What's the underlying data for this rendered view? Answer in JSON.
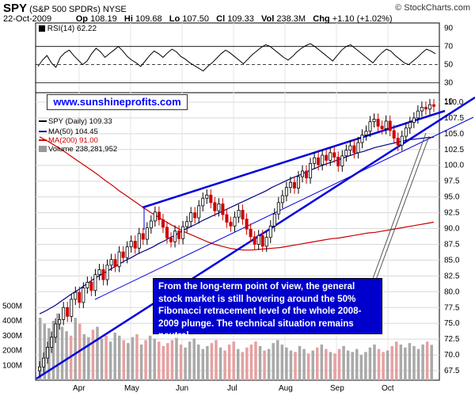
{
  "header": {
    "symbol": "SPY",
    "name": "(S&P 500 SPDRs)",
    "exchange": "NYSE",
    "date": "22-Oct-2009",
    "open_label": "Op",
    "open": "108.19",
    "high_label": "Hi",
    "high": "109.68",
    "low_label": "Lo",
    "low": "107.50",
    "close_label": "Cl",
    "close": "109.33",
    "vol_label": "Vol",
    "vol": "238.3M",
    "chg_label": "Chg",
    "chg": "+1.10 (+1.02%)",
    "credit": "© StockCharts.com"
  },
  "rsi_panel": {
    "label": "RSI(14) 62.22",
    "ticks": [
      "90",
      "70",
      "50",
      "30"
    ]
  },
  "url_box": "www.sunshineprofits.com",
  "legend": {
    "price": "SPY (Daily) 109.33",
    "ma50": "MA(50) 104.45",
    "ma200": "MA(200) 91.00",
    "volume": "Volume 238,281,952"
  },
  "annotation": "From the long-term point of view, the general stock market is still hovering around the 50% Fibonacci retracement level of the whole 2008-2009 plunge. The technical situation remains neutral.",
  "colors": {
    "up": "#000000",
    "down": "#cc0000",
    "ma50": "#00008b",
    "ma200": "#cc0000",
    "trend": "#0000dd",
    "note_bg": "#0000cc"
  },
  "chart_data": {
    "type": "candlestick",
    "price_ticks": [
      "110.0",
      "107.5",
      "105.0",
      "102.5",
      "100.0",
      "97.5",
      "95.0",
      "92.5",
      "90.0",
      "87.5",
      "85.0",
      "82.5",
      "80.0",
      "77.5",
      "75.0",
      "72.5",
      "70.0",
      "67.5"
    ],
    "price_ylim": [
      66,
      111.5
    ],
    "x_labels": [
      "Apr",
      "May",
      "Jun",
      "Jul",
      "Aug",
      "Sep",
      "Oct"
    ],
    "volume_ticks": [
      "500M",
      "400M",
      "300M",
      "200M",
      "100M"
    ],
    "extra_right_tick": "10",
    "rsi_ylim": [
      20,
      95
    ],
    "closes": [
      68.1,
      69.5,
      71.2,
      72.8,
      74.9,
      75.6,
      77.5,
      76.1,
      78.8,
      79.9,
      78.3,
      80.6,
      81.5,
      80.2,
      82.7,
      83.5,
      81.9,
      84.2,
      85.1,
      84.0,
      86.3,
      85.4,
      87.1,
      88.0,
      86.9,
      89.2,
      88.3,
      90.1,
      91.2,
      92.6,
      91.4,
      90.2,
      88.5,
      87.9,
      89.6,
      88.4,
      90.3,
      91.1,
      92.5,
      91.7,
      93.6,
      94.8,
      95.3,
      94.1,
      92.8,
      93.9,
      92.2,
      91.0,
      90.4,
      91.8,
      92.9,
      91.5,
      89.9,
      88.7,
      87.5,
      88.9,
      87.2,
      88.6,
      90.4,
      92.3,
      94.1,
      95.2,
      96.5,
      97.3,
      96.4,
      98.2,
      99.1,
      98.0,
      100.3,
      101.2,
      100.1,
      101.6,
      100.8,
      102.0,
      101.3,
      99.9,
      101.5,
      102.4,
      103.1,
      102.0,
      103.6,
      104.8,
      105.4,
      106.9,
      107.3,
      106.2,
      105.8,
      107.0,
      105.5,
      104.3,
      103.2,
      104.6,
      105.9,
      106.8,
      107.5,
      108.6,
      109.2,
      108.9,
      109.6,
      109.33
    ],
    "ma50": [
      76.5,
      76.9,
      77.4,
      77.9,
      78.5,
      79.1,
      79.7,
      80.2,
      80.8,
      81.4,
      82.0,
      82.5,
      83.0,
      83.5,
      84.0,
      84.5,
      85.0,
      85.4,
      85.9,
      86.3,
      86.7,
      87.1,
      87.6,
      88.0,
      88.5,
      88.9,
      89.4,
      89.9,
      90.3,
      90.7,
      91.2,
      91.6,
      92.0,
      92.4,
      92.8,
      93.2,
      93.6,
      94.0,
      94.4,
      94.8,
      95.2,
      95.6,
      96.0,
      96.5,
      96.9,
      97.3,
      97.7,
      98.1,
      98.4,
      98.8,
      99.2,
      99.5,
      99.9,
      100.2,
      100.5,
      100.8,
      101.1,
      101.4,
      101.7,
      102.0,
      102.2,
      102.5,
      102.8,
      103.0,
      103.2,
      103.4,
      103.6,
      103.8,
      104.0,
      104.1,
      104.2,
      104.3,
      104.4,
      104.45
    ],
    "ma200": [
      104.5,
      103.9,
      103.2,
      102.5,
      101.7,
      100.9,
      100.1,
      99.3,
      98.5,
      97.6,
      96.8,
      95.9,
      95.1,
      94.3,
      93.5,
      92.7,
      92.0,
      91.3,
      90.6,
      90.0,
      89.4,
      88.9,
      88.4,
      87.9,
      87.5,
      87.2,
      86.9,
      86.7,
      86.6,
      86.6,
      86.7,
      86.8,
      86.9,
      87.0,
      87.2,
      87.4,
      87.6,
      87.8,
      88.0,
      88.2,
      88.4,
      88.5,
      88.7,
      88.9,
      89.1,
      89.3,
      89.4,
      89.6,
      89.8,
      90.0,
      90.2,
      90.4,
      90.6,
      90.8,
      91.0
    ],
    "rsi": [
      48,
      55,
      60,
      52,
      47,
      58,
      63,
      66,
      60,
      55,
      50,
      54,
      62,
      68,
      64,
      58,
      62,
      66,
      70,
      65,
      59,
      55,
      52,
      48,
      54,
      60,
      65,
      62,
      58,
      63,
      67,
      64,
      59,
      56,
      52,
      49,
      46,
      43,
      48,
      52,
      57,
      62,
      66,
      63,
      59,
      55,
      51,
      56,
      61,
      65,
      69,
      72,
      70,
      66,
      62,
      58,
      55,
      59,
      64,
      68,
      71,
      73,
      70,
      66,
      62,
      58,
      54,
      60,
      66,
      70,
      72,
      68,
      64,
      60,
      56,
      52,
      58,
      63,
      67,
      65,
      60,
      56,
      52,
      50,
      54,
      58,
      63,
      67,
      65,
      62
    ],
    "volume": [
      420,
      380,
      350,
      400,
      450,
      360,
      330,
      300,
      420,
      380,
      310,
      290,
      340,
      360,
      280,
      300,
      260,
      320,
      300,
      270,
      250,
      290,
      310,
      240,
      270,
      300,
      280,
      260,
      230,
      250,
      270,
      290,
      240,
      220,
      260,
      280,
      240,
      210,
      230,
      250,
      270,
      220,
      200,
      240,
      260,
      210,
      190,
      220,
      240,
      260,
      230,
      200,
      210,
      250,
      270,
      240,
      220,
      200,
      190,
      230,
      210,
      180,
      200,
      220,
      240,
      210,
      190,
      180,
      210,
      230,
      200,
      190,
      210,
      170,
      190,
      220,
      240,
      210,
      190,
      200,
      230,
      260,
      240,
      220,
      250,
      230,
      210,
      240,
      260,
      238
    ]
  }
}
